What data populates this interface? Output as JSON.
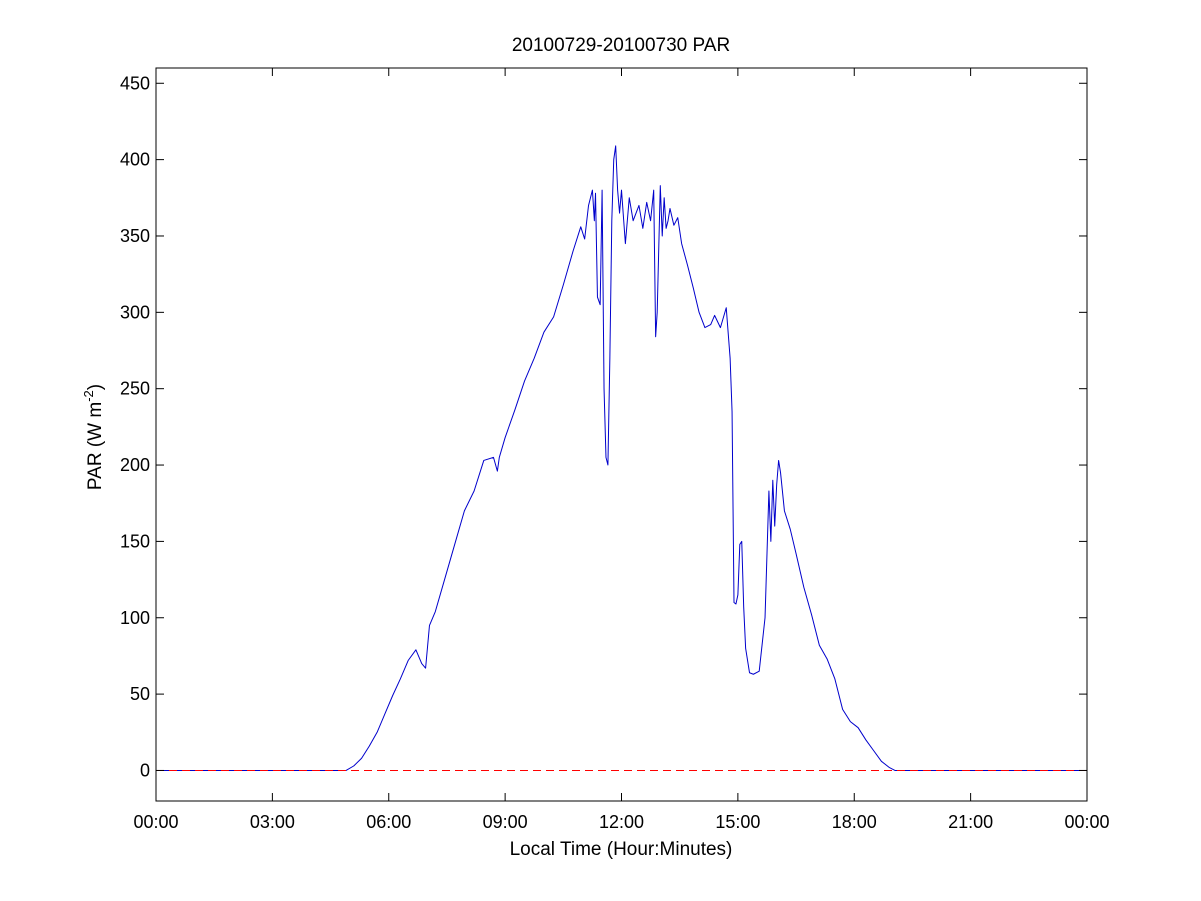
{
  "chart_data": {
    "type": "line",
    "title": "20100729-20100730 PAR",
    "xlabel": "Local Time (Hour:Minutes)",
    "ylabel": "PAR (W m",
    "ylabel_sup": "-2",
    "ylabel_close": ")",
    "x_unit": "hours",
    "xlim": [
      0,
      24
    ],
    "ylim": [
      -20,
      460
    ],
    "x_ticks": [
      {
        "value": 0,
        "label": "00:00"
      },
      {
        "value": 3,
        "label": "03:00"
      },
      {
        "value": 6,
        "label": "06:00"
      },
      {
        "value": 9,
        "label": "09:00"
      },
      {
        "value": 12,
        "label": "12:00"
      },
      {
        "value": 15,
        "label": "15:00"
      },
      {
        "value": 18,
        "label": "18:00"
      },
      {
        "value": 21,
        "label": "21:00"
      },
      {
        "value": 24,
        "label": "00:00"
      }
    ],
    "y_ticks": [
      {
        "value": 0,
        "label": "0"
      },
      {
        "value": 50,
        "label": "50"
      },
      {
        "value": 100,
        "label": "100"
      },
      {
        "value": 150,
        "label": "150"
      },
      {
        "value": 200,
        "label": "200"
      },
      {
        "value": 250,
        "label": "250"
      },
      {
        "value": 300,
        "label": "300"
      },
      {
        "value": 350,
        "label": "350"
      },
      {
        "value": 400,
        "label": "400"
      },
      {
        "value": 450,
        "label": "450"
      }
    ],
    "grid": false,
    "series": [
      {
        "color": "#0000cc",
        "style": "solid",
        "x": [
          0,
          4.9,
          5.1,
          5.3,
          5.5,
          5.7,
          5.9,
          6.1,
          6.3,
          6.5,
          6.7,
          6.85,
          6.95,
          7.05,
          7.2,
          7.45,
          7.7,
          7.95,
          8.2,
          8.45,
          8.7,
          8.8,
          8.85,
          9.0,
          9.25,
          9.5,
          9.75,
          10.0,
          10.25,
          10.5,
          10.75,
          10.95,
          11.05,
          11.15,
          11.25,
          11.3,
          11.33,
          11.38,
          11.45,
          11.5,
          11.55,
          11.6,
          11.65,
          11.7,
          11.75,
          11.8,
          11.85,
          11.9,
          11.95,
          12.0,
          12.1,
          12.2,
          12.3,
          12.45,
          12.55,
          12.65,
          12.75,
          12.83,
          12.88,
          12.92,
          13.0,
          13.05,
          13.1,
          13.15,
          13.2,
          13.25,
          13.35,
          13.45,
          13.55,
          13.7,
          13.85,
          14.0,
          14.15,
          14.3,
          14.4,
          14.55,
          14.7,
          14.8,
          14.85,
          14.9,
          14.95,
          15.0,
          15.05,
          15.1,
          15.15,
          15.2,
          15.3,
          15.4,
          15.55,
          15.7,
          15.8,
          15.85,
          15.9,
          15.95,
          16.0,
          16.05,
          16.1,
          16.2,
          16.35,
          16.5,
          16.7,
          16.9,
          17.1,
          17.3,
          17.5,
          17.7,
          17.9,
          18.1,
          18.3,
          18.5,
          18.7,
          18.9,
          19.05,
          19.15,
          19.3,
          20.0,
          21.0,
          22.0,
          23.0,
          24.0
        ],
        "y": [
          0,
          0,
          3,
          8,
          16,
          25,
          37,
          49,
          60,
          72,
          79,
          70,
          67,
          95,
          104,
          126,
          148,
          170,
          183,
          203,
          205,
          196,
          205,
          218,
          236,
          255,
          270,
          287,
          297,
          318,
          340,
          356,
          348,
          370,
          380,
          360,
          378,
          310,
          305,
          380,
          250,
          205,
          200,
          270,
          360,
          400,
          409,
          380,
          365,
          380,
          345,
          375,
          360,
          370,
          355,
          372,
          360,
          380,
          284,
          300,
          383,
          350,
          375,
          355,
          360,
          368,
          357,
          362,
          345,
          331,
          316,
          300,
          290,
          292,
          298,
          290,
          303,
          270,
          235,
          110,
          109,
          115,
          148,
          150,
          107,
          80,
          64,
          63,
          65,
          100,
          183,
          150,
          190,
          160,
          187,
          203,
          195,
          170,
          158,
          142,
          120,
          102,
          82,
          73,
          60,
          40,
          32,
          28,
          20,
          13,
          6,
          2,
          0,
          0,
          0,
          0,
          0,
          0,
          0,
          0
        ]
      },
      {
        "color": "#ff0000",
        "style": "dashed",
        "x": [
          0,
          24
        ],
        "y": [
          0,
          0
        ]
      }
    ]
  }
}
